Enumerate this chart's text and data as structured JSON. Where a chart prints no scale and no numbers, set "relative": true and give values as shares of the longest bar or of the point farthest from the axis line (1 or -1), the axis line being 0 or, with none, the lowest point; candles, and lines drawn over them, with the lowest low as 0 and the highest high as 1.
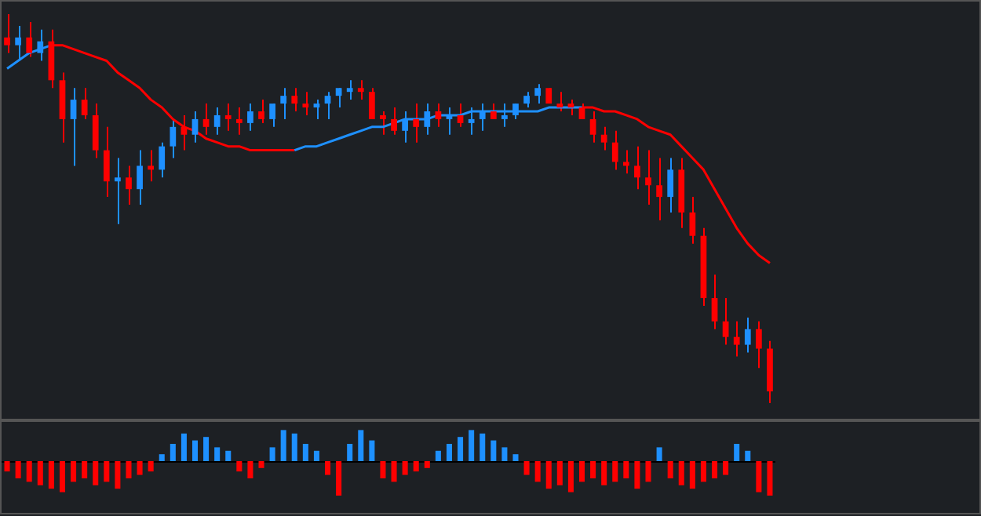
{
  "chart_data": [
    {
      "type": "candlestick",
      "relative": true,
      "categories": [
        null,
        null,
        null,
        null,
        null,
        null,
        null,
        null,
        null,
        null,
        null,
        null,
        null,
        null,
        null,
        null,
        null,
        null,
        null,
        null,
        null,
        null,
        null,
        null,
        null,
        null,
        null,
        null,
        null,
        null,
        null,
        null,
        null,
        null,
        null,
        null,
        null,
        null,
        null,
        null,
        null,
        null,
        null,
        null,
        null,
        null,
        null,
        null,
        null,
        null,
        null,
        null,
        null,
        null,
        null,
        null,
        null,
        null,
        null,
        null,
        null,
        null,
        null,
        null,
        null,
        null,
        null,
        null,
        null,
        null
      ],
      "ohlc": [
        [
          0.94,
          1.0,
          0.9,
          0.92
        ],
        [
          0.92,
          0.97,
          0.88,
          0.94
        ],
        [
          0.94,
          0.98,
          0.89,
          0.9
        ],
        [
          0.9,
          0.96,
          0.88,
          0.93
        ],
        [
          0.93,
          0.96,
          0.81,
          0.83
        ],
        [
          0.83,
          0.85,
          0.67,
          0.73
        ],
        [
          0.73,
          0.81,
          0.61,
          0.78
        ],
        [
          0.78,
          0.81,
          0.73,
          0.74
        ],
        [
          0.74,
          0.77,
          0.63,
          0.65
        ],
        [
          0.65,
          0.71,
          0.53,
          0.57
        ],
        [
          0.57,
          0.63,
          0.46,
          0.58
        ],
        [
          0.58,
          0.61,
          0.51,
          0.55
        ],
        [
          0.55,
          0.65,
          0.51,
          0.61
        ],
        [
          0.61,
          0.65,
          0.57,
          0.6
        ],
        [
          0.6,
          0.67,
          0.58,
          0.66
        ],
        [
          0.66,
          0.73,
          0.63,
          0.71
        ],
        [
          0.71,
          0.74,
          0.65,
          0.69
        ],
        [
          0.69,
          0.75,
          0.67,
          0.73
        ],
        [
          0.73,
          0.77,
          0.69,
          0.71
        ],
        [
          0.71,
          0.76,
          0.69,
          0.74
        ],
        [
          0.74,
          0.77,
          0.7,
          0.73
        ],
        [
          0.73,
          0.76,
          0.69,
          0.72
        ],
        [
          0.72,
          0.77,
          0.7,
          0.75
        ],
        [
          0.75,
          0.78,
          0.72,
          0.73
        ],
        [
          0.73,
          0.77,
          0.71,
          0.77
        ],
        [
          0.77,
          0.81,
          0.73,
          0.79
        ],
        [
          0.79,
          0.81,
          0.75,
          0.77
        ],
        [
          0.77,
          0.8,
          0.74,
          0.76
        ],
        [
          0.76,
          0.78,
          0.73,
          0.77
        ],
        [
          0.77,
          0.8,
          0.73,
          0.79
        ],
        [
          0.79,
          0.81,
          0.76,
          0.81
        ],
        [
          0.8,
          0.83,
          0.78,
          0.81
        ],
        [
          0.81,
          0.83,
          0.78,
          0.8
        ],
        [
          0.8,
          0.81,
          0.73,
          0.73
        ],
        [
          0.74,
          0.75,
          0.69,
          0.73
        ],
        [
          0.73,
          0.76,
          0.69,
          0.7
        ],
        [
          0.7,
          0.75,
          0.67,
          0.73
        ],
        [
          0.73,
          0.77,
          0.67,
          0.71
        ],
        [
          0.71,
          0.77,
          0.69,
          0.75
        ],
        [
          0.75,
          0.77,
          0.71,
          0.73
        ],
        [
          0.73,
          0.76,
          0.69,
          0.74
        ],
        [
          0.74,
          0.77,
          0.71,
          0.72
        ],
        [
          0.72,
          0.76,
          0.69,
          0.73
        ],
        [
          0.73,
          0.77,
          0.7,
          0.75
        ],
        [
          0.75,
          0.77,
          0.73,
          0.73
        ],
        [
          0.73,
          0.77,
          0.71,
          0.74
        ],
        [
          0.74,
          0.77,
          0.73,
          0.77
        ],
        [
          0.77,
          0.8,
          0.76,
          0.79
        ],
        [
          0.79,
          0.82,
          0.77,
          0.81
        ],
        [
          0.81,
          0.81,
          0.77,
          0.77
        ],
        [
          0.77,
          0.8,
          0.75,
          0.76
        ],
        [
          0.77,
          0.78,
          0.74,
          0.76
        ],
        [
          0.76,
          0.77,
          0.73,
          0.73
        ],
        [
          0.73,
          0.75,
          0.67,
          0.69
        ],
        [
          0.69,
          0.71,
          0.65,
          0.67
        ],
        [
          0.67,
          0.7,
          0.6,
          0.62
        ],
        [
          0.62,
          0.65,
          0.59,
          0.61
        ],
        [
          0.61,
          0.66,
          0.55,
          0.58
        ],
        [
          0.58,
          0.65,
          0.51,
          0.56
        ],
        [
          0.56,
          0.63,
          0.47,
          0.53
        ],
        [
          0.53,
          0.63,
          0.49,
          0.6
        ],
        [
          0.6,
          0.63,
          0.45,
          0.49
        ],
        [
          0.49,
          0.53,
          0.41,
          0.43
        ],
        [
          0.43,
          0.45,
          0.25,
          0.27
        ],
        [
          0.27,
          0.33,
          0.19,
          0.21
        ],
        [
          0.21,
          0.27,
          0.15,
          0.17
        ],
        [
          0.17,
          0.21,
          0.12,
          0.15
        ],
        [
          0.15,
          0.22,
          0.13,
          0.19
        ],
        [
          0.19,
          0.21,
          0.09,
          0.14
        ],
        [
          0.14,
          0.16,
          0.0,
          0.03
        ]
      ],
      "colors": [
        "#ff0000",
        "#1e90ff",
        "#ff0000",
        "#1e90ff",
        "#ff0000",
        "#ff0000",
        "#1e90ff",
        "#ff0000",
        "#ff0000",
        "#ff0000",
        "#1e90ff",
        "#ff0000",
        "#1e90ff",
        "#ff0000",
        "#1e90ff",
        "#1e90ff",
        "#ff0000",
        "#1e90ff",
        "#ff0000",
        "#1e90ff",
        "#ff0000",
        "#ff0000",
        "#1e90ff",
        "#ff0000",
        "#1e90ff",
        "#1e90ff",
        "#ff0000",
        "#ff0000",
        "#1e90ff",
        "#1e90ff",
        "#1e90ff",
        "#1e90ff",
        "#ff0000",
        "#ff0000",
        "#ff0000",
        "#ff0000",
        "#1e90ff",
        "#ff0000",
        "#1e90ff",
        "#ff0000",
        "#1e90ff",
        "#ff0000",
        "#1e90ff",
        "#1e90ff",
        "#ff0000",
        "#1e90ff",
        "#1e90ff",
        "#1e90ff",
        "#1e90ff",
        "#ff0000",
        "#ff0000",
        "#ff0000",
        "#ff0000",
        "#ff0000",
        "#ff0000",
        "#ff0000",
        "#ff0000",
        "#ff0000",
        "#ff0000",
        "#ff0000",
        "#1e90ff",
        "#ff0000",
        "#ff0000",
        "#ff0000",
        "#ff0000",
        "#ff0000",
        "#ff0000",
        "#1e90ff",
        "#ff0000",
        "#ff0000"
      ],
      "series": [
        {
          "type": "line",
          "color": "#1e90ff",
          "values": [
            0.86,
            0.88,
            0.9,
            0.91,
            0.92,
            null,
            null,
            null,
            null,
            null,
            null,
            null,
            null,
            null,
            null,
            null,
            null,
            null,
            null,
            null,
            null,
            null,
            null,
            null,
            null,
            null,
            0.65,
            0.66,
            0.66,
            0.67,
            0.68,
            0.69,
            0.7,
            0.71,
            0.71,
            0.72,
            0.73,
            0.73,
            0.73,
            0.74,
            0.74,
            0.74,
            0.75,
            0.75,
            0.75,
            0.75,
            0.75,
            0.75,
            0.75,
            0.76,
            0.76,
            0.76,
            0.76,
            null,
            null,
            null,
            null,
            null,
            null,
            null,
            null,
            null,
            null,
            null,
            null,
            null,
            null,
            null,
            null,
            null
          ]
        },
        {
          "type": "line",
          "color": "#ff0000",
          "values": [
            null,
            null,
            null,
            null,
            0.92,
            0.92,
            0.91,
            0.9,
            0.89,
            0.88,
            0.85,
            0.83,
            0.81,
            0.78,
            0.76,
            0.73,
            0.71,
            0.7,
            0.68,
            0.67,
            0.66,
            0.66,
            0.65,
            0.65,
            0.65,
            0.65,
            0.65,
            null,
            null,
            null,
            null,
            null,
            null,
            null,
            null,
            null,
            null,
            null,
            null,
            null,
            null,
            null,
            null,
            null,
            null,
            null,
            null,
            null,
            null,
            null,
            null,
            null,
            0.76,
            0.76,
            0.75,
            0.75,
            0.74,
            0.73,
            0.71,
            0.7,
            0.69,
            0.66,
            0.63,
            0.6,
            0.55,
            0.5,
            0.45,
            0.41,
            0.38,
            0.36
          ]
        }
      ]
    },
    {
      "type": "bar",
      "relative": true,
      "categories": [
        null,
        null,
        null,
        null,
        null,
        null,
        null,
        null,
        null,
        null,
        null,
        null,
        null,
        null,
        null,
        null,
        null,
        null,
        null,
        null,
        null,
        null,
        null,
        null,
        null,
        null,
        null,
        null,
        null,
        null,
        null,
        null,
        null,
        null,
        null,
        null,
        null,
        null,
        null,
        null,
        null,
        null,
        null,
        null,
        null,
        null,
        null,
        null,
        null,
        null,
        null,
        null,
        null,
        null,
        null,
        null,
        null,
        null,
        null,
        null,
        null,
        null,
        null,
        null,
        null,
        null,
        null,
        null,
        null,
        null
      ],
      "values": [
        -0.3,
        -0.5,
        -0.6,
        -0.7,
        -0.8,
        -0.9,
        -0.6,
        -0.5,
        -0.7,
        -0.6,
        -0.8,
        -0.5,
        -0.4,
        -0.3,
        0.2,
        0.5,
        0.8,
        0.6,
        0.7,
        0.4,
        0.3,
        -0.3,
        -0.5,
        -0.2,
        0.4,
        0.9,
        0.8,
        0.5,
        0.3,
        -0.4,
        -1,
        0.5,
        0.9,
        0.6,
        -0.5,
        -0.6,
        -0.4,
        -0.3,
        -0.2,
        0.3,
        0.5,
        0.7,
        0.9,
        0.8,
        0.6,
        0.4,
        0.2,
        -0.4,
        -0.6,
        -0.8,
        -0.7,
        -0.9,
        -0.6,
        -0.5,
        -0.7,
        -0.6,
        -0.5,
        -0.8,
        -0.6,
        0.4,
        -0.5,
        -0.7,
        -0.8,
        -0.6,
        -0.5,
        -0.4,
        0.5,
        0.3,
        -0.9,
        -1
      ],
      "colors": [
        "#ff0000",
        "#ff0000",
        "#ff0000",
        "#ff0000",
        "#ff0000",
        "#ff0000",
        "#ff0000",
        "#ff0000",
        "#ff0000",
        "#ff0000",
        "#ff0000",
        "#ff0000",
        "#ff0000",
        "#ff0000",
        "#1e90ff",
        "#1e90ff",
        "#1e90ff",
        "#1e90ff",
        "#1e90ff",
        "#1e90ff",
        "#1e90ff",
        "#ff0000",
        "#ff0000",
        "#ff0000",
        "#1e90ff",
        "#1e90ff",
        "#1e90ff",
        "#1e90ff",
        "#1e90ff",
        "#ff0000",
        "#ff0000",
        "#1e90ff",
        "#1e90ff",
        "#1e90ff",
        "#ff0000",
        "#ff0000",
        "#ff0000",
        "#ff0000",
        "#ff0000",
        "#1e90ff",
        "#1e90ff",
        "#1e90ff",
        "#1e90ff",
        "#1e90ff",
        "#1e90ff",
        "#1e90ff",
        "#1e90ff",
        "#ff0000",
        "#ff0000",
        "#ff0000",
        "#ff0000",
        "#ff0000",
        "#ff0000",
        "#ff0000",
        "#ff0000",
        "#ff0000",
        "#ff0000",
        "#ff0000",
        "#ff0000",
        "#1e90ff",
        "#ff0000",
        "#ff0000",
        "#ff0000",
        "#ff0000",
        "#ff0000",
        "#ff0000",
        "#1e90ff",
        "#1e90ff",
        "#ff0000",
        "#ff0000"
      ]
    }
  ]
}
